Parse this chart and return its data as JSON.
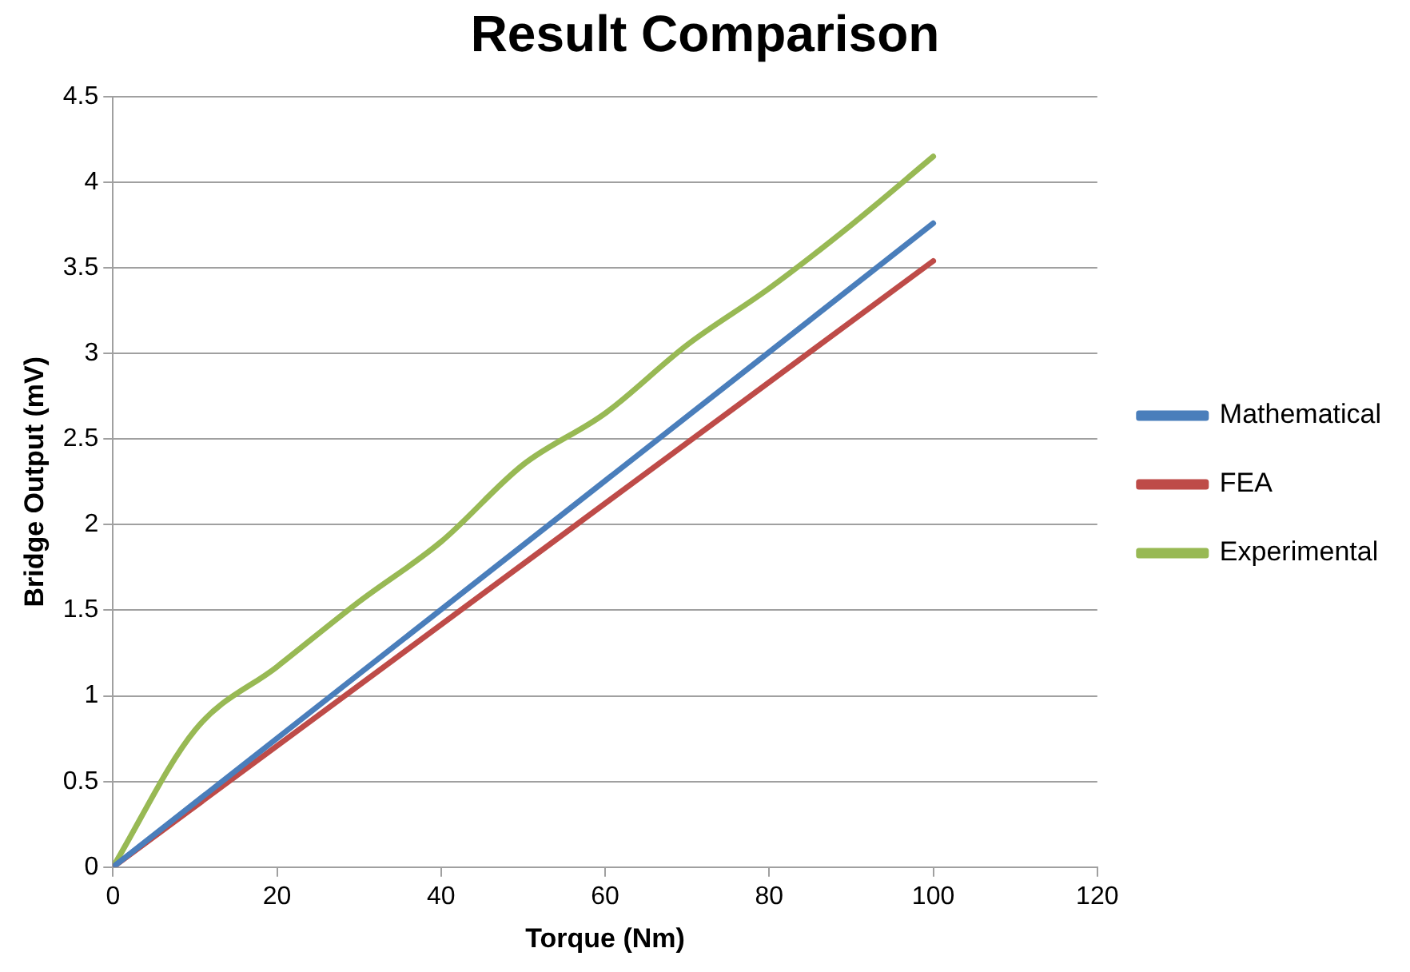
{
  "chart_data": {
    "type": "line",
    "title": "Result Comparison",
    "xlabel": "Torque (Nm)",
    "ylabel": "Bridge Output (mV)",
    "xlim": [
      0,
      120
    ],
    "xticks": [
      0,
      20,
      40,
      60,
      80,
      100,
      120
    ],
    "ylim": [
      0,
      4.5
    ],
    "yticks": [
      0,
      0.5,
      1,
      1.5,
      2,
      2.5,
      3,
      3.5,
      4,
      4.5
    ],
    "grid": "y",
    "legend": "right",
    "marker": "none",
    "series": [
      {
        "name": "Mathematical",
        "color": "#4a7ebb",
        "x": [
          0,
          100
        ],
        "values": [
          0,
          3.76
        ]
      },
      {
        "name": "FEA",
        "color": "#be4b48",
        "x": [
          0,
          100
        ],
        "values": [
          0,
          3.54
        ]
      },
      {
        "name": "Experimental",
        "color": "#98b954",
        "x": [
          0,
          10,
          20,
          30,
          40,
          50,
          60,
          70,
          80,
          90,
          100
        ],
        "values": [
          0,
          0.8,
          1.17,
          1.55,
          1.9,
          2.35,
          2.65,
          3.05,
          3.38,
          3.75,
          4.15
        ]
      }
    ]
  }
}
